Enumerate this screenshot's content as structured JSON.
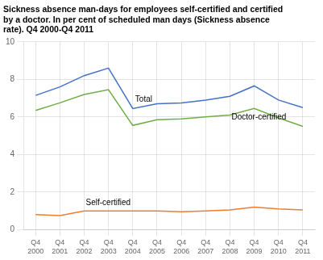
{
  "chart_data": {
    "type": "line",
    "title": "Sickness absence man-days for employees self-certified and certified\nby a doctor. In per cent of scheduled man days (Sickness absence\nrate). Q4 2000-Q4 2011",
    "categories": [
      "Q4\n2000",
      "Q4\n2001",
      "Q4\n2002",
      "Q4\n2003",
      "Q4\n2004",
      "Q4\n2005",
      "Q4\n2006",
      "Q4\n2007",
      "Q4\n2008",
      "Q4\n2009",
      "Q4\n2010",
      "Q4\n2011"
    ],
    "series": [
      {
        "color": "#4472C4",
        "values": [
          7.15,
          7.6,
          8.2,
          8.6,
          6.45,
          6.7,
          6.75,
          6.9,
          7.1,
          7.65,
          6.9,
          6.5
        ]
      },
      {
        "color": "#70AD47",
        "values": [
          6.35,
          6.75,
          7.2,
          7.45,
          5.55,
          5.85,
          5.9,
          6.0,
          6.1,
          6.45,
          5.95,
          5.5
        ]
      },
      {
        "color": "#ED7D31",
        "values": [
          0.8,
          0.75,
          1.0,
          1.0,
          1.0,
          1.0,
          0.95,
          1.0,
          1.05,
          1.2,
          1.1,
          1.05
        ]
      }
    ],
    "annotations": [
      "Total",
      "Doctor-certified",
      "Self-certified"
    ],
    "ylim": [
      0,
      10
    ],
    "yticks": [
      0,
      2,
      4,
      6,
      8,
      10
    ],
    "grid": true
  }
}
